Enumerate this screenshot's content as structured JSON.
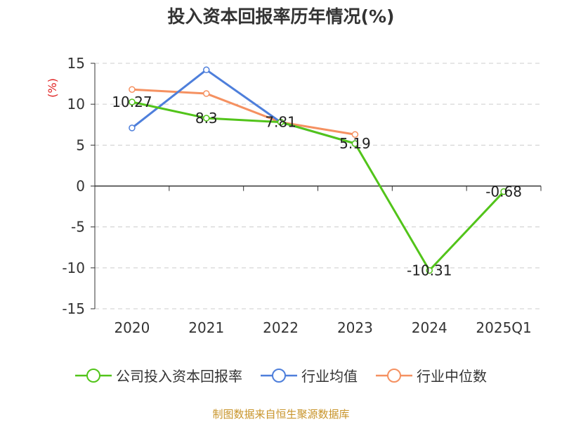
{
  "title": "投入资本回报率历年情况(%)",
  "source_note": "制图数据来自恒生聚源数据库",
  "colors": {
    "company": "#52c41a",
    "industry_avg": "#4e7fdb",
    "industry_median": "#f59161",
    "unit_label": "#e02020",
    "source": "#c8942a",
    "grid": "#cccccc",
    "axis": "#333333"
  },
  "chart_data": {
    "type": "line",
    "title": "投入资本回报率历年情况(%)",
    "ylabel": "(%)",
    "xlabel": "",
    "ylim": [
      -15,
      15
    ],
    "yticks": [
      15,
      10,
      5,
      0,
      -5,
      -10,
      -15
    ],
    "categories": [
      "2020",
      "2021",
      "2022",
      "2023",
      "2024",
      "2025Q1"
    ],
    "grid": true,
    "legend_position": "bottom",
    "series": [
      {
        "name": "公司投入资本回报率",
        "color_key": "company",
        "values": [
          10.27,
          8.3,
          7.81,
          5.19,
          -10.31,
          -0.68
        ],
        "data_labels": [
          "10.27",
          "8.3",
          "7.81",
          "5.19",
          "-10.31",
          "-0.68"
        ]
      },
      {
        "name": "行业均值",
        "color_key": "industry_avg",
        "values": [
          7.1,
          14.2,
          7.8,
          5.2,
          null,
          null
        ]
      },
      {
        "name": "行业中位数",
        "color_key": "industry_median",
        "values": [
          11.8,
          11.3,
          7.8,
          6.3,
          null,
          null
        ]
      }
    ]
  }
}
